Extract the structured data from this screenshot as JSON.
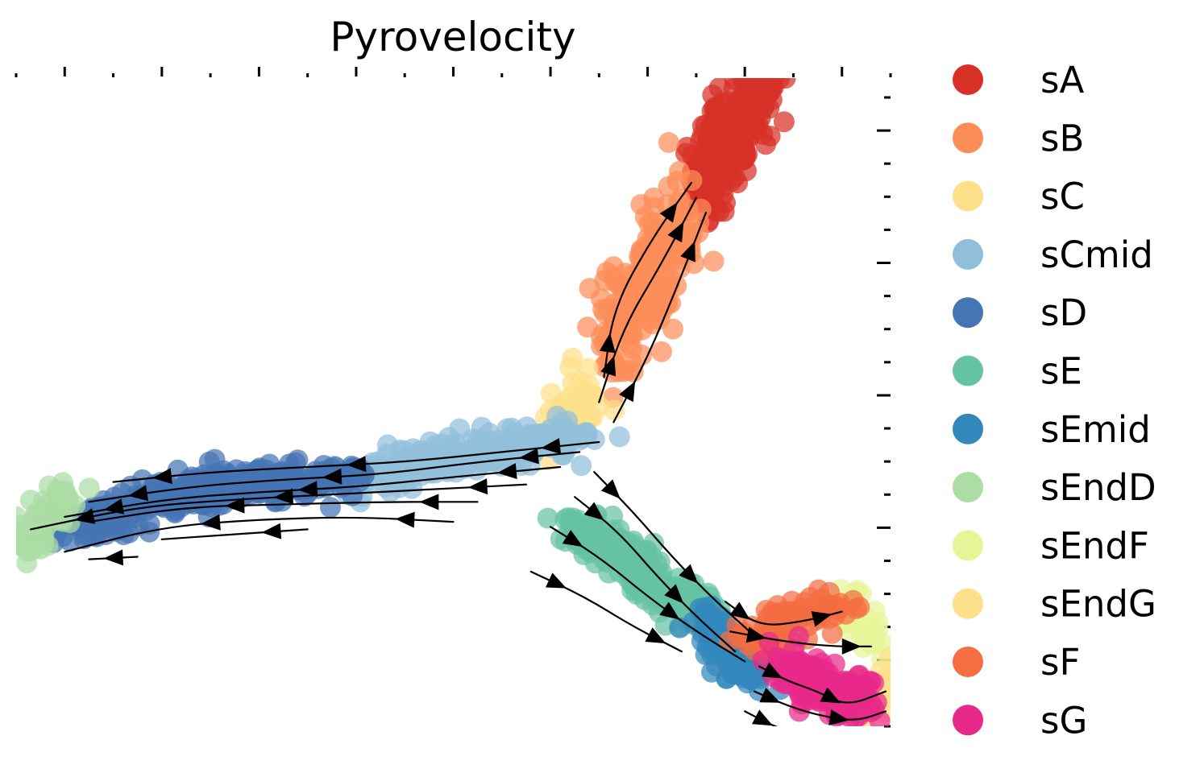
{
  "chart_data": {
    "type": "scatter",
    "title": "Pyrovelocity",
    "xlabel": "",
    "ylabel": "",
    "xlim": [
      0,
      18
    ],
    "ylim": [
      0,
      13
    ],
    "grid": false,
    "legend_position": "right",
    "overlay": "velocity streamlines (arrows)",
    "clusters": [
      {
        "name": "sA",
        "color": "#d73027",
        "centroid": [
          14.8,
          11.8
        ],
        "spread": [
          0.45,
          0.9
        ],
        "count": 260,
        "path": [
          [
            15.5,
            13.0
          ],
          [
            14.8,
            12.0
          ],
          [
            14.1,
            10.8
          ]
        ]
      },
      {
        "name": "sB",
        "color": "#fc8d59",
        "centroid": [
          13.0,
          8.8
        ],
        "spread": [
          0.45,
          1.0
        ],
        "count": 200,
        "path": [
          [
            13.8,
            10.2
          ],
          [
            13.0,
            8.9
          ],
          [
            12.2,
            7.7
          ]
        ]
      },
      {
        "name": "sC",
        "color": "#fee08b",
        "centroid": [
          11.5,
          6.2
        ],
        "spread": [
          0.35,
          0.45
        ],
        "count": 70,
        "path": [
          [
            11.9,
            6.8
          ],
          [
            11.4,
            6.2
          ],
          [
            11.1,
            5.7
          ]
        ]
      },
      {
        "name": "sCmid",
        "color": "#91bfdb",
        "centroid": [
          8.6,
          5.3
        ],
        "spread": [
          0.6,
          0.35
        ],
        "count": 240,
        "path": [
          [
            11.6,
            5.8
          ],
          [
            9.5,
            5.5
          ],
          [
            7.0,
            4.9
          ]
        ]
      },
      {
        "name": "sD",
        "color": "#4575b4",
        "centroid": [
          3.6,
          4.6
        ],
        "spread": [
          0.5,
          0.35
        ],
        "count": 300,
        "path": [
          [
            7.0,
            5.0
          ],
          [
            4.0,
            4.8
          ],
          [
            1.0,
            3.9
          ]
        ]
      },
      {
        "name": "sE",
        "color": "#66c2a5",
        "centroid": [
          12.8,
          3.3
        ],
        "spread": [
          0.45,
          0.35
        ],
        "count": 200,
        "path": [
          [
            11.4,
            4.1
          ],
          [
            12.8,
            3.2
          ],
          [
            14.3,
            2.0
          ]
        ]
      },
      {
        "name": "sEmid",
        "color": "#3288bd",
        "centroid": [
          14.8,
          1.5
        ],
        "spread": [
          0.35,
          0.3
        ],
        "count": 110,
        "path": [
          [
            14.2,
            2.2
          ],
          [
            14.7,
            1.4
          ],
          [
            15.2,
            0.9
          ]
        ]
      },
      {
        "name": "sEndD",
        "color": "#abdda4",
        "centroid": [
          0.5,
          4.1
        ],
        "spread": [
          0.35,
          0.4
        ],
        "count": 70,
        "path": [
          [
            1.0,
            4.6
          ],
          [
            0.5,
            4.0
          ],
          [
            0.1,
            3.6
          ]
        ]
      },
      {
        "name": "sEndF",
        "color": "#e6f598",
        "centroid": [
          17.4,
          2.2
        ],
        "spread": [
          0.3,
          0.35
        ],
        "count": 40,
        "path": [
          [
            17.0,
            2.6
          ],
          [
            17.4,
            2.1
          ],
          [
            17.6,
            1.7
          ]
        ]
      },
      {
        "name": "sEndG",
        "color": "#fee08b",
        "centroid": [
          17.3,
          0.4
        ],
        "spread": [
          0.3,
          0.3
        ],
        "count": 50,
        "path": [
          [
            16.8,
            0.3
          ],
          [
            17.4,
            0.4
          ],
          [
            17.9,
            1.0
          ]
        ]
      },
      {
        "name": "sF",
        "color": "#f46d43",
        "centroid": [
          16.1,
          2.2
        ],
        "spread": [
          0.45,
          0.35
        ],
        "count": 90,
        "path": [
          [
            15.2,
            1.6
          ],
          [
            16.0,
            2.3
          ],
          [
            17.0,
            2.4
          ]
        ]
      },
      {
        "name": "sG",
        "color": "#e7298a",
        "centroid": [
          16.6,
          0.9
        ],
        "spread": [
          0.45,
          0.45
        ],
        "count": 150,
        "path": [
          [
            15.7,
            1.2
          ],
          [
            16.6,
            0.8
          ],
          [
            17.5,
            0.5
          ]
        ]
      }
    ],
    "streamlines": [
      [
        [
          12.0,
          5.7
        ],
        [
          10.0,
          5.5
        ],
        [
          8.0,
          5.3
        ],
        [
          6.0,
          5.2
        ],
        [
          4.0,
          5.1
        ],
        [
          2.0,
          4.9
        ]
      ],
      [
        [
          11.6,
          5.5
        ],
        [
          9.5,
          5.3
        ],
        [
          7.5,
          5.05
        ],
        [
          5.5,
          4.95
        ],
        [
          3.5,
          4.8
        ],
        [
          1.5,
          4.5
        ]
      ],
      [
        [
          11.2,
          5.2
        ],
        [
          9.0,
          5.0
        ],
        [
          7.0,
          4.8
        ],
        [
          5.0,
          4.7
        ],
        [
          3.0,
          4.55
        ],
        [
          1.0,
          4.2
        ]
      ],
      [
        [
          10.5,
          4.85
        ],
        [
          8.5,
          4.75
        ],
        [
          6.5,
          4.65
        ],
        [
          4.5,
          4.55
        ],
        [
          2.5,
          4.4
        ],
        [
          0.3,
          3.95
        ]
      ],
      [
        [
          9.5,
          4.5
        ],
        [
          7.5,
          4.5
        ],
        [
          5.5,
          4.45
        ],
        [
          3.5,
          4.4
        ],
        [
          1.5,
          4.1
        ]
      ],
      [
        [
          9.0,
          4.1
        ],
        [
          7.0,
          4.2
        ],
        [
          5.0,
          4.15
        ],
        [
          3.0,
          4.0
        ],
        [
          1.0,
          3.5
        ]
      ],
      [
        [
          6.0,
          3.95
        ],
        [
          4.5,
          3.85
        ],
        [
          3.0,
          3.75
        ]
      ],
      [
        [
          2.5,
          3.4
        ],
        [
          1.5,
          3.35
        ]
      ],
      [
        [
          12.3,
          6.1
        ],
        [
          13.0,
          7.4
        ],
        [
          13.6,
          8.8
        ],
        [
          14.2,
          10.3
        ]
      ],
      [
        [
          12.0,
          6.5
        ],
        [
          12.5,
          8.0
        ],
        [
          13.3,
          9.3
        ],
        [
          14.0,
          10.6
        ]
      ],
      [
        [
          12.1,
          7.0
        ],
        [
          12.3,
          8.4
        ],
        [
          13.1,
          9.8
        ],
        [
          13.9,
          10.9
        ]
      ],
      [
        [
          11.9,
          5.1
        ],
        [
          12.7,
          4.3
        ],
        [
          13.5,
          3.4
        ],
        [
          14.3,
          2.6
        ],
        [
          15.1,
          1.9
        ]
      ],
      [
        [
          11.5,
          4.6
        ],
        [
          12.4,
          3.9
        ],
        [
          13.2,
          3.0
        ],
        [
          14.0,
          2.2
        ],
        [
          14.8,
          1.5
        ]
      ],
      [
        [
          11.0,
          4.0
        ],
        [
          12.0,
          3.4
        ],
        [
          13.0,
          2.6
        ],
        [
          14.0,
          1.9
        ],
        [
          15.0,
          1.3
        ]
      ],
      [
        [
          10.6,
          3.1
        ],
        [
          11.7,
          2.6
        ],
        [
          12.7,
          2.0
        ],
        [
          13.7,
          1.5
        ]
      ],
      [
        [
          14.6,
          2.5
        ],
        [
          15.3,
          2.0
        ],
        [
          16.2,
          2.1
        ],
        [
          17.0,
          2.3
        ]
      ],
      [
        [
          14.7,
          1.9
        ],
        [
          15.8,
          1.7
        ],
        [
          16.8,
          1.6
        ],
        [
          17.6,
          1.6
        ]
      ],
      [
        [
          15.3,
          1.2
        ],
        [
          15.9,
          0.9
        ],
        [
          16.5,
          0.7
        ],
        [
          17.1,
          0.4
        ],
        [
          17.9,
          0.7
        ]
      ],
      [
        [
          15.2,
          0.7
        ],
        [
          15.9,
          0.4
        ],
        [
          16.6,
          0.2
        ],
        [
          17.3,
          0.1
        ],
        [
          17.9,
          0.3
        ]
      ],
      [
        [
          15.0,
          0.3
        ],
        [
          15.8,
          -0.1
        ],
        [
          16.7,
          -0.2
        ],
        [
          17.6,
          -0.3
        ]
      ]
    ],
    "legend": [
      {
        "label": "sA",
        "color": "#d73027"
      },
      {
        "label": "sB",
        "color": "#fc8d59"
      },
      {
        "label": "sC",
        "color": "#fee08b"
      },
      {
        "label": "sCmid",
        "color": "#91bfdb"
      },
      {
        "label": "sD",
        "color": "#4575b4"
      },
      {
        "label": "sE",
        "color": "#66c2a5"
      },
      {
        "label": "sEmid",
        "color": "#3288bd"
      },
      {
        "label": "sEndD",
        "color": "#abdda4"
      },
      {
        "label": "sEndF",
        "color": "#e6f598"
      },
      {
        "label": "sEndG",
        "color": "#fee08b"
      },
      {
        "label": "sF",
        "color": "#f46d43"
      },
      {
        "label": "sG",
        "color": "#e7298a"
      }
    ]
  }
}
